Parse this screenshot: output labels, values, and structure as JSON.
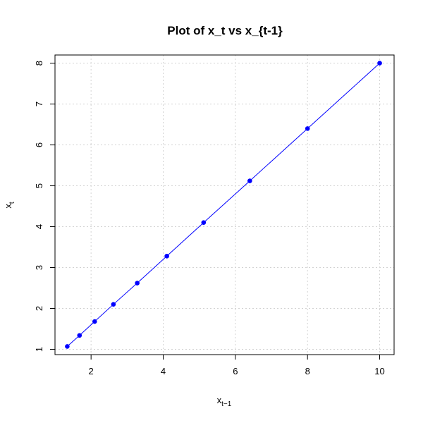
{
  "chart_data": {
    "type": "line",
    "title": "Plot of x_t vs x_{t-1}",
    "xlabel": {
      "base": "x",
      "sub": "t−1"
    },
    "ylabel": {
      "base": "x",
      "sub": "t"
    },
    "xlim": [
      1.0,
      10.4
    ],
    "ylim": [
      0.87,
      8.2
    ],
    "x_ticks": [
      2,
      4,
      6,
      8,
      10
    ],
    "y_ticks": [
      1,
      2,
      3,
      4,
      5,
      6,
      7,
      8
    ],
    "grid": true,
    "x": [
      1.34,
      1.68,
      2.1,
      2.62,
      3.28,
      4.1,
      5.12,
      6.4,
      8.0,
      10.0
    ],
    "y": [
      1.07,
      1.34,
      1.68,
      2.1,
      2.62,
      3.28,
      4.1,
      5.12,
      6.4,
      8.0
    ],
    "series_color": "#0000ff",
    "markers": "filled-circle"
  }
}
